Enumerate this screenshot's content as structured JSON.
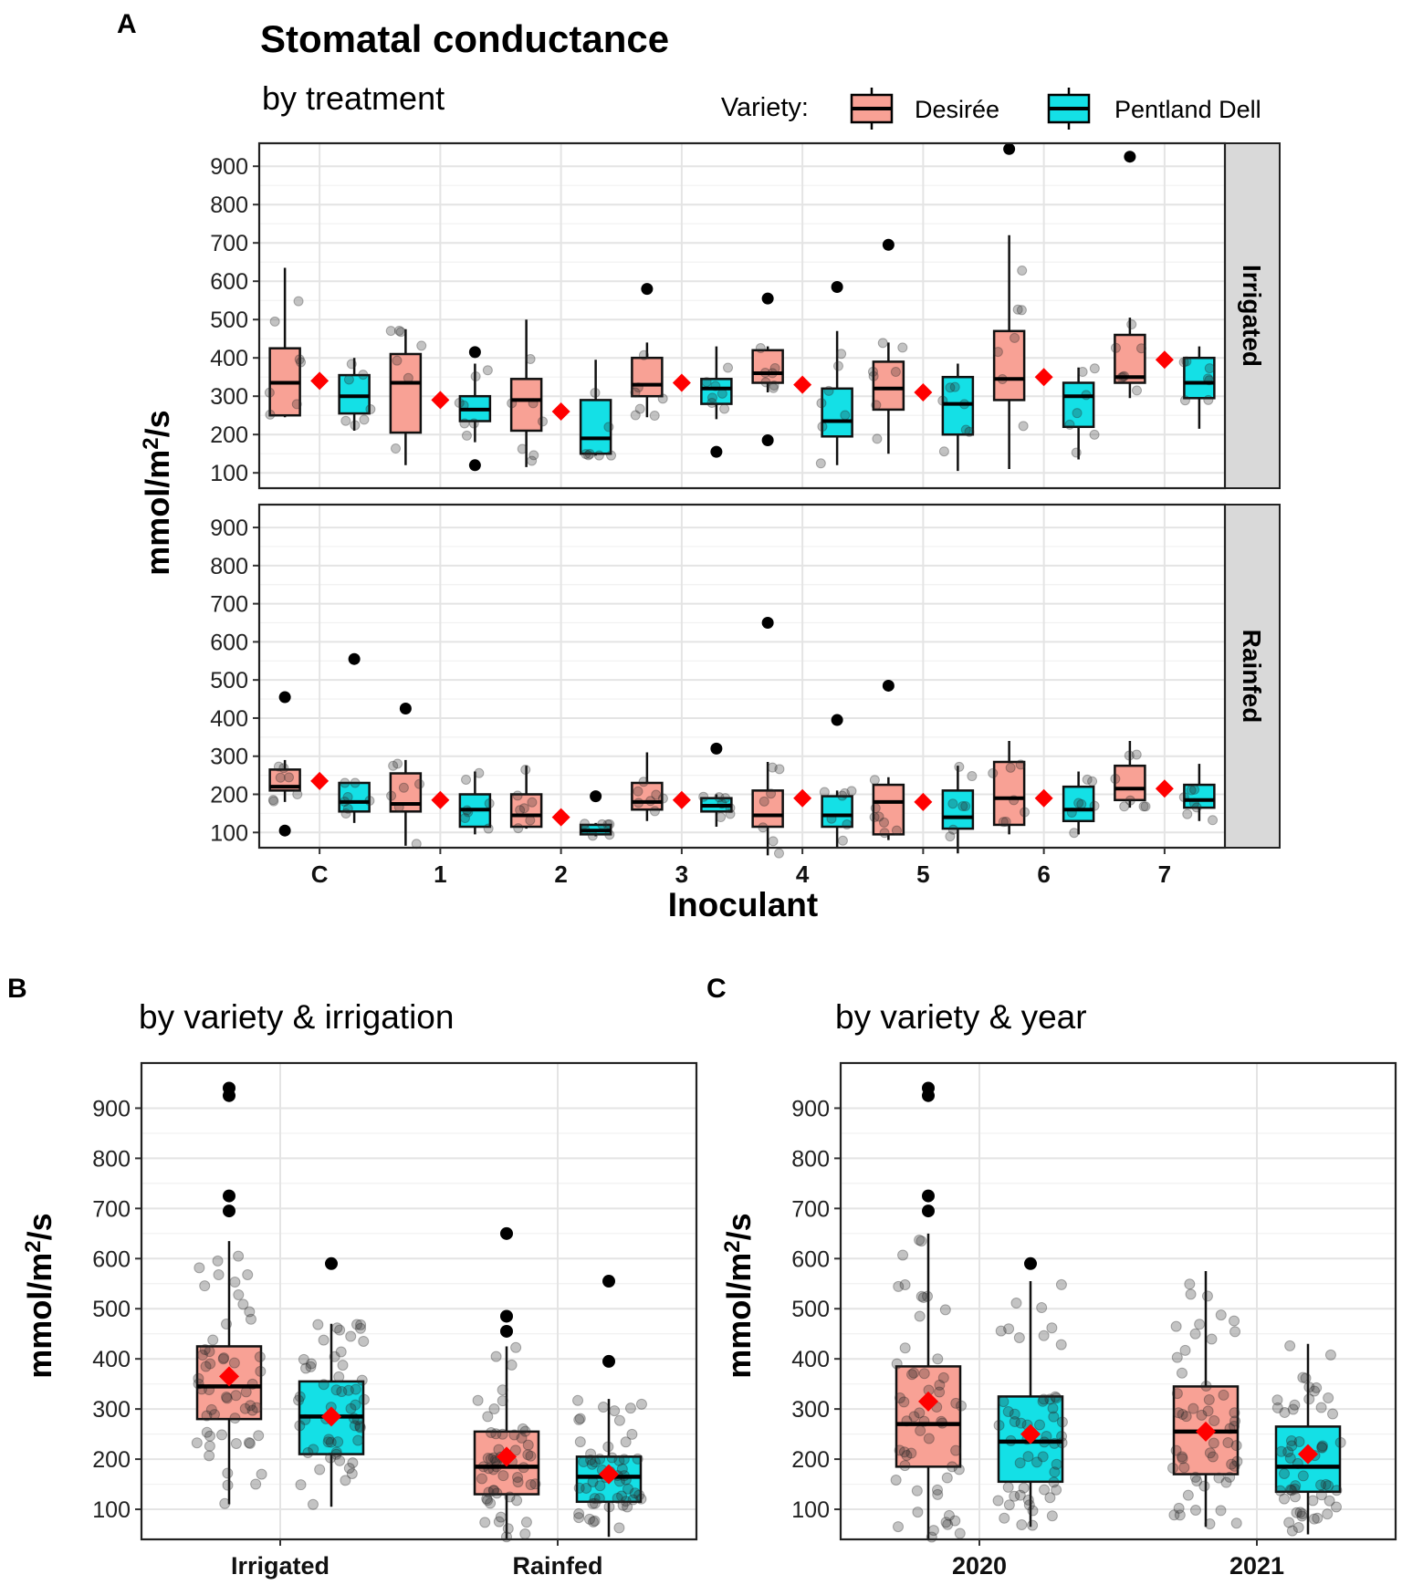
{
  "figure": {
    "title": "Stomatal conductance",
    "panel_letters": {
      "a": "A",
      "b": "B",
      "c": "C"
    },
    "legend": {
      "title": "Variety:",
      "items": [
        {
          "name": "Desirée",
          "color": "#F8A195"
        },
        {
          "name": "Pentland Dell",
          "color": "#14E0E6"
        }
      ]
    },
    "mean_marker_color": "#FF0000"
  },
  "chart_data": [
    {
      "id": "A",
      "type": "box",
      "subtitle": "by treatment",
      "xlabel": "Inoculant",
      "ylabel": "mmol/m2/s",
      "ylim": [
        60,
        960
      ],
      "yticks": [
        100,
        200,
        300,
        400,
        500,
        600,
        700,
        800,
        900
      ],
      "categories": [
        "C",
        "1",
        "2",
        "3",
        "4",
        "5",
        "6",
        "7"
      ],
      "facets": [
        {
          "label": "Irrigated",
          "series": [
            {
              "name": "Desirée",
              "boxes": [
                {
                  "low": 245,
                  "q1": 250,
                  "median": 335,
                  "q3": 425,
                  "high": 635,
                  "mean": 340,
                  "outliers": []
                },
                {
                  "low": 120,
                  "q1": 205,
                  "median": 335,
                  "q3": 410,
                  "high": 475,
                  "mean": 290,
                  "outliers": []
                },
                {
                  "low": 115,
                  "q1": 210,
                  "median": 290,
                  "q3": 345,
                  "high": 500,
                  "mean": 260,
                  "outliers": []
                },
                {
                  "low": 245,
                  "q1": 300,
                  "median": 330,
                  "q3": 400,
                  "high": 440,
                  "mean": 335,
                  "outliers": [
                    580
                  ]
                },
                {
                  "low": 310,
                  "q1": 335,
                  "median": 360,
                  "q3": 420,
                  "high": 430,
                  "mean": 330,
                  "outliers": [
                    555,
                    185
                  ]
                },
                {
                  "low": 150,
                  "q1": 265,
                  "median": 320,
                  "q3": 390,
                  "high": 440,
                  "mean": 310,
                  "outliers": [
                    695
                  ]
                },
                {
                  "low": 110,
                  "q1": 290,
                  "median": 345,
                  "q3": 470,
                  "high": 720,
                  "mean": 350,
                  "outliers": [
                    945
                  ]
                },
                {
                  "low": 295,
                  "q1": 335,
                  "median": 350,
                  "q3": 460,
                  "high": 505,
                  "mean": 395,
                  "outliers": [
                    925
                  ]
                }
              ]
            },
            {
              "name": "Pentland Dell",
              "boxes": [
                {
                  "low": 210,
                  "q1": 255,
                  "median": 300,
                  "q3": 355,
                  "high": 400,
                  "mean": null,
                  "outliers": []
                },
                {
                  "low": 180,
                  "q1": 235,
                  "median": 265,
                  "q3": 300,
                  "high": 385,
                  "mean": null,
                  "outliers": [
                    415,
                    120
                  ]
                },
                {
                  "low": 145,
                  "q1": 150,
                  "median": 190,
                  "q3": 290,
                  "high": 395,
                  "mean": null,
                  "outliers": []
                },
                {
                  "low": 240,
                  "q1": 280,
                  "median": 320,
                  "q3": 345,
                  "high": 430,
                  "mean": null,
                  "outliers": [
                    155
                  ]
                },
                {
                  "low": 120,
                  "q1": 195,
                  "median": 235,
                  "q3": 320,
                  "high": 470,
                  "mean": null,
                  "outliers": [
                    585
                  ]
                },
                {
                  "low": 105,
                  "q1": 200,
                  "median": 280,
                  "q3": 350,
                  "high": 385,
                  "mean": null,
                  "outliers": []
                },
                {
                  "low": 135,
                  "q1": 220,
                  "median": 300,
                  "q3": 335,
                  "high": 375,
                  "mean": null,
                  "outliers": []
                },
                {
                  "low": 215,
                  "q1": 295,
                  "median": 335,
                  "q3": 400,
                  "high": 430,
                  "mean": null,
                  "outliers": []
                }
              ]
            }
          ]
        },
        {
          "label": "Rainfed",
          "series": [
            {
              "name": "Desirée",
              "boxes": [
                {
                  "low": 180,
                  "q1": 210,
                  "median": 220,
                  "q3": 265,
                  "high": 290,
                  "mean": 235,
                  "outliers": [
                    455,
                    105
                  ]
                },
                {
                  "low": 65,
                  "q1": 155,
                  "median": 175,
                  "q3": 255,
                  "high": 290,
                  "mean": 185,
                  "outliers": [
                    425
                  ]
                },
                {
                  "low": 110,
                  "q1": 115,
                  "median": 145,
                  "q3": 200,
                  "high": 275,
                  "mean": 140,
                  "outliers": []
                },
                {
                  "low": 130,
                  "q1": 160,
                  "median": 180,
                  "q3": 230,
                  "high": 310,
                  "mean": 185,
                  "outliers": []
                },
                {
                  "low": 40,
                  "q1": 115,
                  "median": 145,
                  "q3": 210,
                  "high": 285,
                  "mean": 190,
                  "outliers": [
                    650
                  ]
                },
                {
                  "low": 80,
                  "q1": 95,
                  "median": 180,
                  "q3": 225,
                  "high": 245,
                  "mean": 180,
                  "outliers": [
                    485
                  ]
                },
                {
                  "low": 95,
                  "q1": 120,
                  "median": 190,
                  "q3": 285,
                  "high": 340,
                  "mean": 190,
                  "outliers": []
                },
                {
                  "low": 165,
                  "q1": 185,
                  "median": 215,
                  "q3": 275,
                  "high": 340,
                  "mean": 215,
                  "outliers": []
                }
              ]
            },
            {
              "name": "Pentland Dell",
              "boxes": [
                {
                  "low": 125,
                  "q1": 155,
                  "median": 180,
                  "q3": 230,
                  "high": 230,
                  "mean": null,
                  "outliers": [
                    555
                  ]
                },
                {
                  "low": 95,
                  "q1": 115,
                  "median": 160,
                  "q3": 200,
                  "high": 260,
                  "mean": null,
                  "outliers": []
                },
                {
                  "low": 90,
                  "q1": 95,
                  "median": 105,
                  "q3": 120,
                  "high": 125,
                  "mean": null,
                  "outliers": [
                    195
                  ]
                },
                {
                  "low": 115,
                  "q1": 155,
                  "median": 170,
                  "q3": 190,
                  "high": 200,
                  "mean": null,
                  "outliers": [
                    320
                  ]
                },
                {
                  "low": 60,
                  "q1": 115,
                  "median": 145,
                  "q3": 195,
                  "high": 210,
                  "mean": null,
                  "outliers": [
                    395
                  ]
                },
                {
                  "low": 45,
                  "q1": 110,
                  "median": 140,
                  "q3": 210,
                  "high": 275,
                  "mean": null,
                  "outliers": []
                },
                {
                  "low": 95,
                  "q1": 130,
                  "median": 160,
                  "q3": 220,
                  "high": 260,
                  "mean": null,
                  "outliers": []
                },
                {
                  "low": 130,
                  "q1": 165,
                  "median": 185,
                  "q3": 225,
                  "high": 280,
                  "mean": null,
                  "outliers": []
                }
              ]
            }
          ]
        }
      ]
    },
    {
      "id": "B",
      "type": "box",
      "subtitle": "by variety & irrigation",
      "xlabel": "",
      "ylabel": "mmol/m2/s",
      "ylim": [
        40,
        990
      ],
      "yticks": [
        100,
        200,
        300,
        400,
        500,
        600,
        700,
        800,
        900
      ],
      "categories": [
        "Irrigated",
        "Rainfed"
      ],
      "series": [
        {
          "name": "Desirée",
          "boxes": [
            {
              "low": 110,
              "q1": 280,
              "median": 345,
              "q3": 425,
              "high": 635,
              "mean": 365,
              "outliers": [
                940,
                925,
                725,
                695
              ]
            },
            {
              "low": 40,
              "q1": 130,
              "median": 185,
              "q3": 255,
              "high": 425,
              "mean": 205,
              "outliers": [
                650,
                485,
                455
              ]
            }
          ]
        },
        {
          "name": "Pentland Dell",
          "boxes": [
            {
              "low": 105,
              "q1": 210,
              "median": 285,
              "q3": 355,
              "high": 470,
              "mean": 285,
              "outliers": [
                590
              ]
            },
            {
              "low": 45,
              "q1": 115,
              "median": 165,
              "q3": 205,
              "high": 320,
              "mean": 170,
              "outliers": [
                555,
                395
              ]
            }
          ]
        }
      ]
    },
    {
      "id": "C",
      "type": "box",
      "subtitle": "by variety & year",
      "xlabel": "",
      "ylabel": "mmol/m2/s",
      "ylim": [
        40,
        990
      ],
      "yticks": [
        100,
        200,
        300,
        400,
        500,
        600,
        700,
        800,
        900
      ],
      "categories": [
        "2020",
        "2021"
      ],
      "series": [
        {
          "name": "Desirée",
          "boxes": [
            {
              "low": 40,
              "q1": 185,
              "median": 270,
              "q3": 385,
              "high": 650,
              "mean": 315,
              "outliers": [
                940,
                925,
                725,
                695
              ]
            },
            {
              "low": 65,
              "q1": 170,
              "median": 255,
              "q3": 345,
              "high": 575,
              "mean": 255,
              "outliers": []
            }
          ]
        },
        {
          "name": "Pentland Dell",
          "boxes": [
            {
              "low": 65,
              "q1": 155,
              "median": 235,
              "q3": 325,
              "high": 555,
              "mean": 250,
              "outliers": [
                590
              ]
            },
            {
              "low": 50,
              "q1": 135,
              "median": 185,
              "q3": 265,
              "high": 430,
              "mean": 210,
              "outliers": []
            }
          ]
        }
      ]
    }
  ]
}
